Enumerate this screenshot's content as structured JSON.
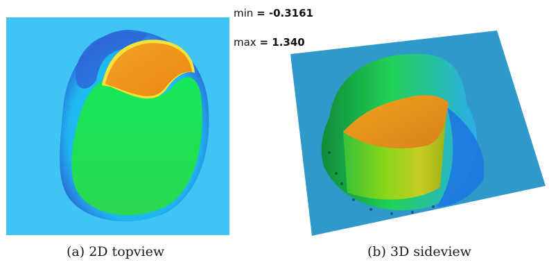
{
  "figure": {
    "stats": {
      "min_label": "min",
      "min_value": "-0.3161",
      "max_label": "max",
      "max_value": "1.340"
    },
    "captions": {
      "left": "(a) 2D topview",
      "right": "(b) 3D sideview"
    },
    "colors": {
      "background_plane": "#3fc4f4",
      "plane_3d": "#2f9ac9",
      "plateau": "#f08a12",
      "body": "#22e056",
      "shock_ring": "#2e6ee0"
    }
  }
}
